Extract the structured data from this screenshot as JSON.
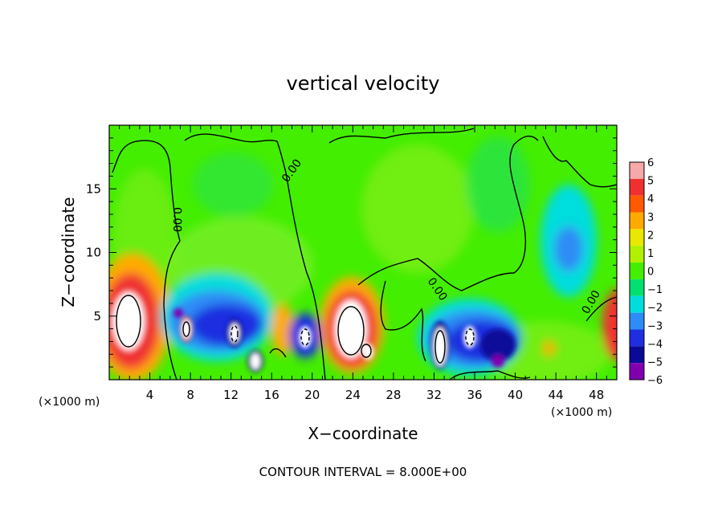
{
  "chart_data": {
    "type": "heatmap",
    "title": "vertical velocity",
    "xlabel": "X−coordinate",
    "ylabel": "Z−coordinate",
    "x_unit_left": "(×1000 m)",
    "x_unit_right": "(×1000 m)",
    "footer": "CONTOUR INTERVAL = 8.000E+00",
    "xlim": [
      0,
      50
    ],
    "ylim": [
      0,
      20
    ],
    "x_ticks": [
      4,
      8,
      12,
      16,
      20,
      24,
      28,
      32,
      36,
      40,
      44,
      48
    ],
    "y_ticks": [
      5,
      10,
      15
    ],
    "contour_label": "0.00",
    "colorbar": {
      "values": [
        6,
        5,
        4,
        3,
        2,
        1,
        0,
        -1,
        -2,
        -3,
        -4,
        -5,
        -6
      ],
      "labels": [
        "6",
        "5",
        "4",
        "3",
        "2",
        "1",
        "0",
        "−1",
        "−2",
        "−3",
        "−4",
        "−5",
        "−6"
      ],
      "colors": [
        "#f7a8a8",
        "#f03030",
        "#ff5a00",
        "#ffaa00",
        "#e8e800",
        "#b0f000",
        "#44ee00",
        "#00e070",
        "#00dddd",
        "#2d8cf5",
        "#1e2ee0",
        "#0a0a99",
        "#8000b0"
      ]
    },
    "features": [
      {
        "x": 2.5,
        "z": 4.5,
        "w": 6
      },
      {
        "x": 7.5,
        "z": 3.5,
        "w": 5
      },
      {
        "x": 12.0,
        "z": 3.5,
        "w": -5
      },
      {
        "x": 14.5,
        "z": 2.0,
        "w": -6
      },
      {
        "x": 17.5,
        "z": 4.0,
        "w": 3
      },
      {
        "x": 19.5,
        "z": 3.5,
        "w": -5
      },
      {
        "x": 24.0,
        "z": 4.0,
        "w": 6
      },
      {
        "x": 33.0,
        "z": 3.5,
        "w": -6
      },
      {
        "x": 36.5,
        "z": 3.5,
        "w": -5
      },
      {
        "x": 45.5,
        "z": 10.5,
        "w": -3
      },
      {
        "x": 49.5,
        "z": 4.0,
        "w": 5
      }
    ]
  }
}
